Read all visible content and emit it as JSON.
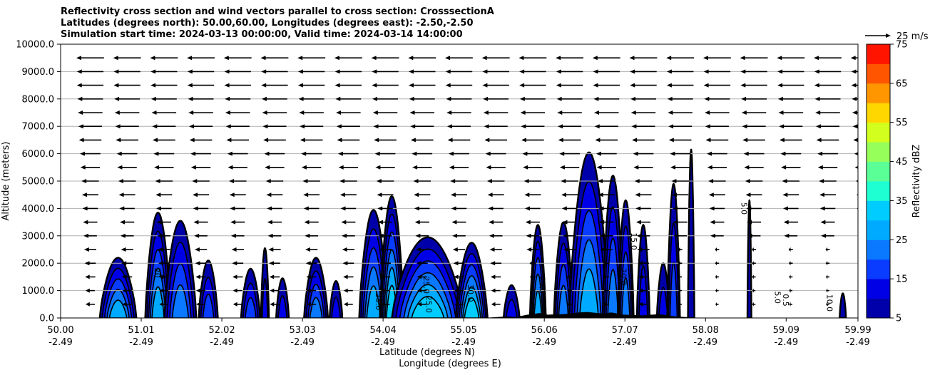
{
  "chart_data": {
    "type": "heatmap",
    "title_lines": [
      "Reflectivity cross section and wind vectors parallel to cross section: CrosssectionA",
      "Latitudes (degrees north): 50.00,60.00, Longitudes (degrees east): -2.50,-2.50",
      "Simulation start time: 2024-03-13 00:00:00, Valid time: 2024-03-14 14:00:00"
    ],
    "xlabel_lines": [
      "Latitude (degrees N)",
      "Longitude (degrees E)"
    ],
    "ylabel": "Altitude (meters)",
    "xlim": [
      50.0,
      59.99
    ],
    "ylim": [
      0,
      10000
    ],
    "x_ticks": [
      {
        "lat": "50.00",
        "lon": "-2.49",
        "value": 50.0
      },
      {
        "lat": "51.01",
        "lon": "-2.49",
        "value": 51.01
      },
      {
        "lat": "52.02",
        "lon": "-2.49",
        "value": 52.02
      },
      {
        "lat": "53.03",
        "lon": "-2.49",
        "value": 53.03
      },
      {
        "lat": "54.04",
        "lon": "-2.49",
        "value": 54.04
      },
      {
        "lat": "55.05",
        "lon": "-2.49",
        "value": 55.05
      },
      {
        "lat": "56.06",
        "lon": "-2.49",
        "value": 56.06
      },
      {
        "lat": "57.07",
        "lon": "-2.49",
        "value": 57.07
      },
      {
        "lat": "58.08",
        "lon": "-2.49",
        "value": 58.08
      },
      {
        "lat": "59.09",
        "lon": "-2.49",
        "value": 59.09
      },
      {
        "lat": "59.99",
        "lon": "-2.49",
        "value": 59.99
      }
    ],
    "y_ticks": [
      {
        "label": "0.0",
        "value": 0
      },
      {
        "label": "1000.0",
        "value": 1000
      },
      {
        "label": "2000.0",
        "value": 2000
      },
      {
        "label": "3000.0",
        "value": 3000
      },
      {
        "label": "4000.0",
        "value": 4000
      },
      {
        "label": "5000.0",
        "value": 5000
      },
      {
        "label": "6000.0",
        "value": 6000
      },
      {
        "label": "7000.0",
        "value": 7000
      },
      {
        "label": "8000.0",
        "value": 8000
      },
      {
        "label": "9000.0",
        "value": 9000
      },
      {
        "label": "10000.0",
        "value": 10000
      }
    ],
    "grid": "horizontal",
    "colorbar": {
      "label": "Reflectivity dBZ",
      "levels": [
        5,
        10,
        15,
        20,
        25,
        30,
        35,
        40,
        45,
        50,
        55,
        60,
        65,
        70,
        75
      ],
      "colors": [
        "#0000aa",
        "#0000e6",
        "#0a3cff",
        "#0a78ff",
        "#00aaff",
        "#00ccff",
        "#1effd2",
        "#5aff96",
        "#96ff5a",
        "#d2ff1e",
        "#ffd700",
        "#ff9600",
        "#ff5500",
        "#ff1400",
        "#aa0000"
      ],
      "tick_labels": [
        "5",
        "15",
        "25",
        "35",
        "45",
        "55",
        "65",
        "75"
      ],
      "tick_values": [
        5,
        15,
        25,
        35,
        45,
        55,
        65,
        75
      ]
    },
    "wind_key": {
      "label": "25 m/s",
      "speed": 25
    },
    "wind": {
      "x_start": 50.37,
      "x_step": 0.462,
      "x_count": 24,
      "z_levels": [
        500,
        1000,
        1500,
        2000,
        2500,
        3000,
        3500,
        4000,
        4500,
        5000,
        5500,
        6000,
        6500,
        7000,
        7500,
        8000,
        8500,
        9000,
        9500
      ],
      "u_by_level": [
        -9,
        -9,
        -10,
        -11,
        -12,
        -13,
        -14,
        -15,
        -16,
        -17,
        -19,
        -20,
        -22,
        -23,
        -24,
        -25,
        -26,
        -26,
        -27
      ]
    },
    "cells": [
      {
        "center": 50.72,
        "width": 0.23,
        "top": 2200,
        "peak": 30
      },
      {
        "center": 51.22,
        "width": 0.16,
        "top": 3850,
        "peak": 30
      },
      {
        "center": 51.5,
        "width": 0.2,
        "top": 3550,
        "peak": 25
      },
      {
        "center": 51.85,
        "width": 0.12,
        "top": 2100,
        "peak": 20
      },
      {
        "center": 52.38,
        "width": 0.12,
        "top": 1800,
        "peak": 20
      },
      {
        "center": 52.56,
        "width": 0.05,
        "top": 2550,
        "peak": 15
      },
      {
        "center": 52.78,
        "width": 0.08,
        "top": 1450,
        "peak": 15
      },
      {
        "center": 53.2,
        "width": 0.15,
        "top": 2200,
        "peak": 25
      },
      {
        "center": 53.45,
        "width": 0.08,
        "top": 1350,
        "peak": 15
      },
      {
        "center": 53.92,
        "width": 0.18,
        "top": 3950,
        "peak": 30
      },
      {
        "center": 54.15,
        "width": 0.15,
        "top": 4450,
        "peak": 35
      },
      {
        "center": 54.6,
        "width": 0.45,
        "top": 2950,
        "peak": 35
      },
      {
        "center": 55.15,
        "width": 0.2,
        "top": 2750,
        "peak": 35
      },
      {
        "center": 55.65,
        "width": 0.1,
        "top": 1200,
        "peak": 15
      },
      {
        "center": 55.98,
        "width": 0.1,
        "top": 3400,
        "peak": 30
      },
      {
        "center": 56.3,
        "width": 0.12,
        "top": 3500,
        "peak": 25
      },
      {
        "center": 56.62,
        "width": 0.25,
        "top": 6050,
        "peak": 30
      },
      {
        "center": 56.92,
        "width": 0.13,
        "top": 5200,
        "peak": 25
      },
      {
        "center": 57.08,
        "width": 0.1,
        "top": 4300,
        "peak": 25
      },
      {
        "center": 57.3,
        "width": 0.08,
        "top": 3400,
        "peak": 15
      },
      {
        "center": 57.55,
        "width": 0.08,
        "top": 2000,
        "peak": 15
      },
      {
        "center": 57.68,
        "width": 0.08,
        "top": 4900,
        "peak": 20
      },
      {
        "center": 57.9,
        "width": 0.04,
        "top": 6150,
        "peak": 10
      },
      {
        "center": 58.63,
        "width": 0.025,
        "top": 4300,
        "peak": 10
      },
      {
        "center": 59.8,
        "width": 0.04,
        "top": 900,
        "peak": 10
      }
    ],
    "contour_labels": [
      {
        "text": "20",
        "x": 51.18,
        "y": 1650
      },
      {
        "text": "35.0",
        "x": 53.95,
        "y": 600
      },
      {
        "text": "25.0",
        "x": 54.55,
        "y": 1200
      },
      {
        "text": "25.0",
        "x": 54.58,
        "y": 500
      },
      {
        "text": "30.0",
        "x": 55.1,
        "y": 900
      },
      {
        "text": "25.0",
        "x": 56.0,
        "y": 1200
      },
      {
        "text": "20.0",
        "x": 57.02,
        "y": 1500
      },
      {
        "text": "15.0",
        "x": 57.15,
        "y": 2800
      },
      {
        "text": "5.0",
        "x": 58.53,
        "y": 4000
      },
      {
        "text": "5.0",
        "x": 58.95,
        "y": 750
      },
      {
        "text": "0.5",
        "x": 59.05,
        "y": 650
      },
      {
        "text": "10.0",
        "x": 59.6,
        "y": 550
      }
    ],
    "terrain": [
      [
        55.3,
        0
      ],
      [
        55.6,
        60
      ],
      [
        55.7,
        30
      ],
      [
        55.85,
        120
      ],
      [
        56.0,
        180
      ],
      [
        56.1,
        120
      ],
      [
        56.3,
        140
      ],
      [
        56.5,
        200
      ],
      [
        56.6,
        220
      ],
      [
        56.8,
        160
      ],
      [
        56.9,
        200
      ],
      [
        57.05,
        120
      ],
      [
        57.3,
        100
      ],
      [
        57.5,
        140
      ],
      [
        57.7,
        60
      ],
      [
        57.9,
        20
      ]
    ]
  }
}
